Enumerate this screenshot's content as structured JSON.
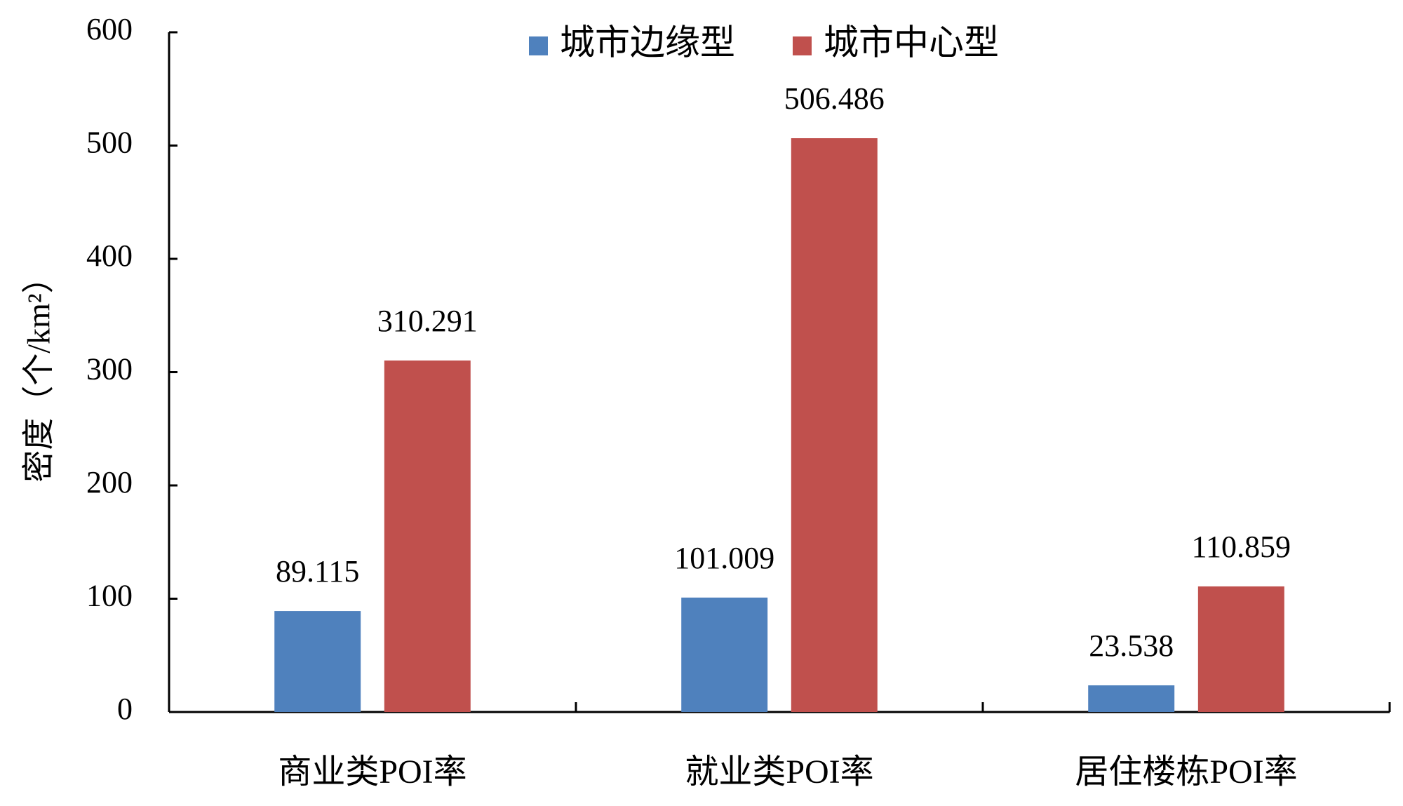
{
  "chart_data": {
    "type": "bar",
    "y_label": "密度（个/km²）",
    "categories": [
      "商业类POI率",
      "就业类POI率",
      "居住楼栋POI率"
    ],
    "series": [
      {
        "name": "城市边缘型",
        "color": "#4f81bd",
        "values": [
          89.115,
          101.009,
          23.538
        ]
      },
      {
        "name": "城市中心型",
        "color": "#c0504d",
        "values": [
          310.291,
          506.486,
          110.859
        ]
      }
    ],
    "ylim": [
      0,
      600
    ],
    "yticks": [
      0,
      100,
      200,
      300,
      400,
      500,
      600
    ],
    "legend": "top"
  }
}
